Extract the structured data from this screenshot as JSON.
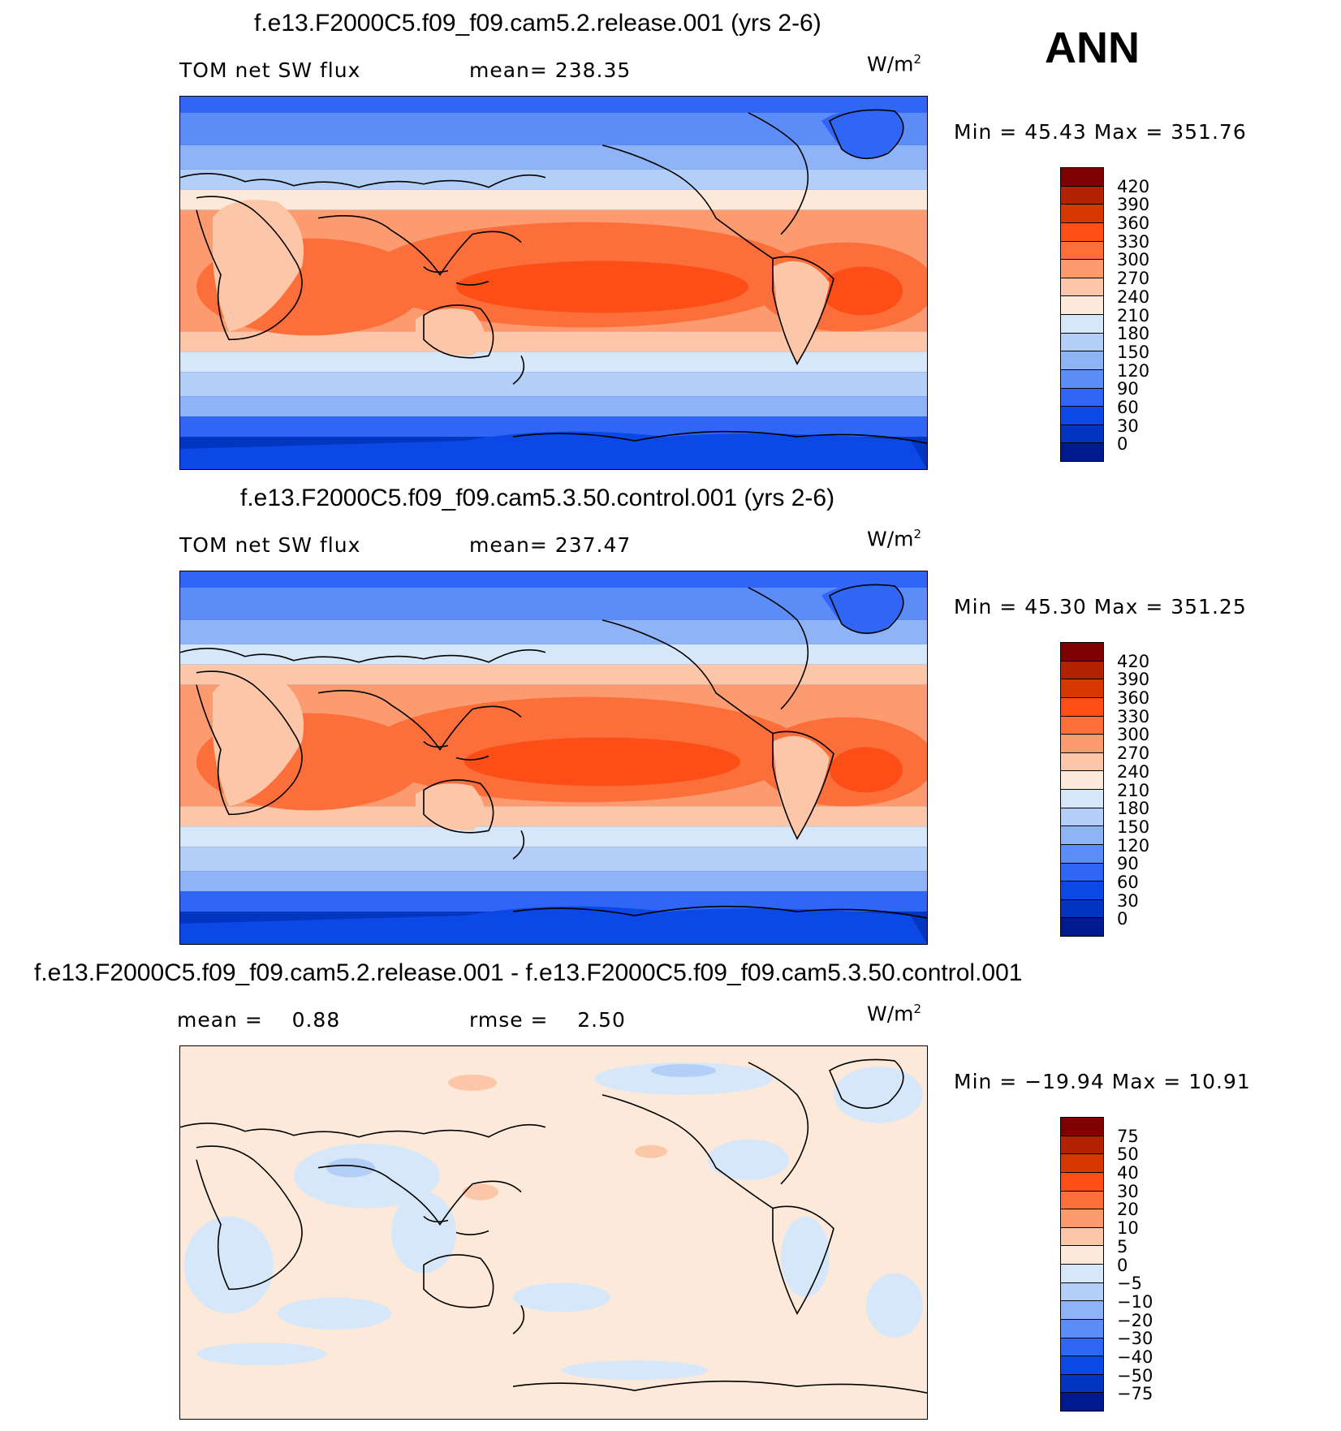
{
  "season": "ANN",
  "panels": [
    {
      "title": "f.e13.F2000C5.f09_f09.cam5.2.release.001 (yrs 2-6)",
      "left_label": "TOM net SW flux",
      "center_label": "mean= 238.35",
      "units_base": "W/m",
      "units_exp": "2",
      "minmax": "Min =   45.43 Max  = 351.76",
      "colorbar_ticks": [
        "420",
        "390",
        "360",
        "330",
        "300",
        "270",
        "240",
        "210",
        "180",
        "150",
        "120",
        "90",
        "60",
        "30",
        "0"
      ],
      "colorbar_colors": [
        "#7f0000",
        "#b32100",
        "#d63800",
        "#fc4e16",
        "#fc6f3a",
        "#fc9b70",
        "#fcc6a8",
        "#fde9d9",
        "#d7e7fa",
        "#b4cff7",
        "#8eb3f6",
        "#5b8cf7",
        "#2f66f5",
        "#0c48e6",
        "#0336c0",
        "#00198f"
      ]
    },
    {
      "title": "f.e13.F2000C5.f09_f09.cam5.3.50.control.001 (yrs 2-6)",
      "left_label": "TOM net SW flux",
      "center_label": "mean= 237.47",
      "units_base": "W/m",
      "units_exp": "2",
      "minmax": "Min =   45.30 Max  = 351.25",
      "colorbar_ticks": [
        "420",
        "390",
        "360",
        "330",
        "300",
        "270",
        "240",
        "210",
        "180",
        "150",
        "120",
        "90",
        "60",
        "30",
        "0"
      ],
      "colorbar_colors": [
        "#7f0000",
        "#b32100",
        "#d63800",
        "#fc4e16",
        "#fc6f3a",
        "#fc9b70",
        "#fcc6a8",
        "#fde9d9",
        "#d7e7fa",
        "#b4cff7",
        "#8eb3f6",
        "#5b8cf7",
        "#2f66f5",
        "#0c48e6",
        "#0336c0",
        "#00198f"
      ]
    },
    {
      "title": "f.e13.F2000C5.f09_f09.cam5.2.release.001 - f.e13.F2000C5.f09_f09.cam5.3.50.control.001",
      "left_label": "mean =    0.88",
      "center_label": "rmse =    2.50",
      "units_base": "W/m",
      "units_exp": "2",
      "minmax": "Min = −19.94 Max =   10.91",
      "colorbar_ticks": [
        "75",
        "50",
        "40",
        "30",
        "20",
        "10",
        "5",
        "0",
        "−5",
        "−10",
        "−20",
        "−30",
        "−40",
        "−50",
        "−75"
      ],
      "colorbar_colors": [
        "#7f0000",
        "#b32100",
        "#d63800",
        "#fc4e16",
        "#fc6f3a",
        "#fc9b70",
        "#fcc6a8",
        "#fde9d9",
        "#d7e7fa",
        "#b4cff7",
        "#8eb3f6",
        "#5b8cf7",
        "#2f66f5",
        "#0c48e6",
        "#0336c0",
        "#00198f"
      ]
    }
  ]
}
